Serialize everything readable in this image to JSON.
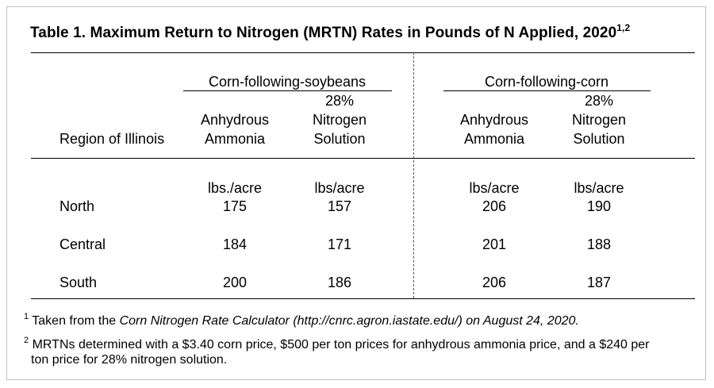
{
  "title": {
    "text": "Table 1.  Maximum Return to Nitrogen (MRTN) Rates in Pounds of N Applied, 2020",
    "sup": "1,2"
  },
  "groups": [
    {
      "label": "Corn-following-soybeans"
    },
    {
      "label": "Corn-following-corn"
    }
  ],
  "row_header": "Region of Illinois",
  "col_headers": [
    {
      "line1": "",
      "line2": "Anhydrous",
      "line3": "Ammonia"
    },
    {
      "line1": "28%",
      "line2": "Nitrogen",
      "line3": "Solution"
    },
    {
      "line1": "",
      "line2": "Anhydrous",
      "line3": "Ammonia"
    },
    {
      "line1": "28%",
      "line2": "Nitrogen",
      "line3": "Solution"
    }
  ],
  "units": [
    "lbs./acre",
    "lbs/acre",
    "lbs/acre",
    "lbs/acre"
  ],
  "rows": [
    {
      "region": "North",
      "values": [
        "175",
        "157",
        "206",
        "190"
      ]
    },
    {
      "region": "Central",
      "values": [
        "184",
        "171",
        "201",
        "188"
      ]
    },
    {
      "region": "South",
      "values": [
        "200",
        "186",
        "206",
        "187"
      ]
    }
  ],
  "footnotes": {
    "f1": {
      "mark": "1",
      "pre": " Taken from the ",
      "italic": "Corn Nitrogen Rate Calculator (http://cnrc.agron.iastate.edu/) on August 24, 2020."
    },
    "f2": {
      "mark": "2",
      "line1": "MRTNs determined with a $3.40 corn price, $500 per ton prices for anhydrous ammonia price, and a $240 per",
      "line2": "ton price for 28% nitrogen solution."
    }
  }
}
